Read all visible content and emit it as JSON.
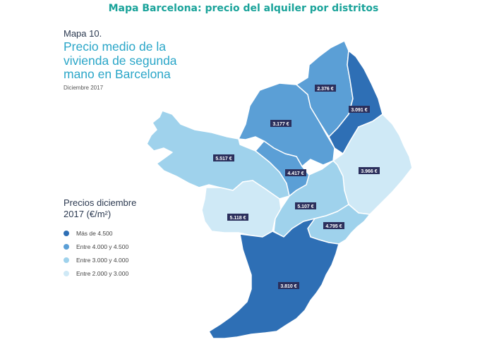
{
  "page_title": "Mapa Barcelona: precio del alquiler por distritos",
  "map_number": "Mapa 10.",
  "heading": {
    "line1": "Precio medio de la",
    "line2": "vivienda de segunda",
    "line3": "mano en Barcelona"
  },
  "date": "Diciembre 2017",
  "legend": {
    "title_line1": "Precios diciembre",
    "title_line2": "2017 (€/m²)",
    "items": [
      {
        "label": "Más de 4.500",
        "color": "#2e6fb5"
      },
      {
        "label": "Entre 4.000 y 4.500",
        "color": "#5b9fd6"
      },
      {
        "label": "Entre 3.000 y 4.000",
        "color": "#9fd2ec"
      },
      {
        "label": "Entre 2.000 y 3.000",
        "color": "#cfe9f6"
      }
    ]
  },
  "districts": [
    {
      "price": "2.376 €"
    },
    {
      "price": "3.091 €"
    },
    {
      "price": "3.177 €"
    },
    {
      "price": "5.517 €"
    },
    {
      "price": "4.417 €"
    },
    {
      "price": "3.966 €"
    },
    {
      "price": "5.107 €"
    },
    {
      "price": "5.118 €"
    },
    {
      "price": "4.795 €"
    },
    {
      "price": "3.810 €"
    }
  ]
}
